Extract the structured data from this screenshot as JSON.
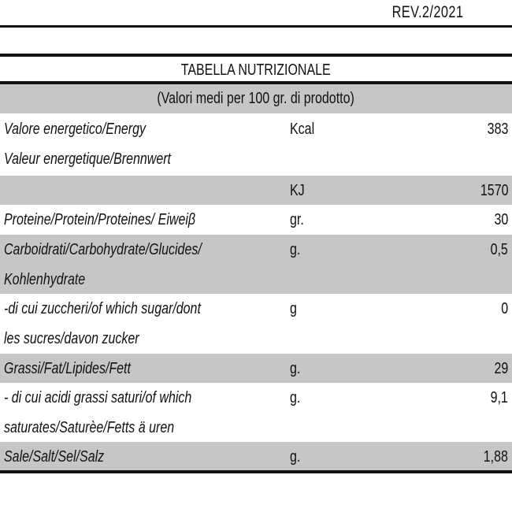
{
  "revision": "REV.2/2021",
  "table": {
    "title": "TABELLA NUTRIZIONALE",
    "subtitle": "(Valori medi per 100 gr. di prodotto)",
    "rows": [
      {
        "label_lines": [
          "Valore energetico/Energy",
          "Valeur energetique/Brennwert"
        ],
        "unit": "Kcal",
        "value": "383",
        "shaded": false
      },
      {
        "label_lines": [
          ""
        ],
        "unit": "KJ",
        "value": "1570",
        "shaded": true
      },
      {
        "label_lines": [
          "Proteine/Protein/Proteines/ Eiweiβ"
        ],
        "unit": "gr.",
        "value": "30",
        "shaded": false
      },
      {
        "label_lines": [
          "Carboidrati/Carbohydrate/Glucides/",
          "Kohlenhydrate"
        ],
        "unit": "g.",
        "value": "0,5",
        "shaded": true
      },
      {
        "label_lines": [
          "-di cui zuccheri/of which sugar/dont",
          " les sucres/davon zucker"
        ],
        "unit": "g",
        "value": "0",
        "shaded": false
      },
      {
        "label_lines": [
          "Grassi/Fat/Lipides/Fett"
        ],
        "unit": "g.",
        "value": "29",
        "shaded": true
      },
      {
        "label_lines": [
          "- di cui acidi grassi saturi/of which",
          "saturates/Saturèe/Fetts ä uren"
        ],
        "unit": "g.",
        "value": "9,1",
        "shaded": false
      },
      {
        "label_lines": [
          "Sale/Salt/Sel/Salz"
        ],
        "unit": "g.",
        "value": "1,88",
        "shaded": true
      }
    ]
  }
}
